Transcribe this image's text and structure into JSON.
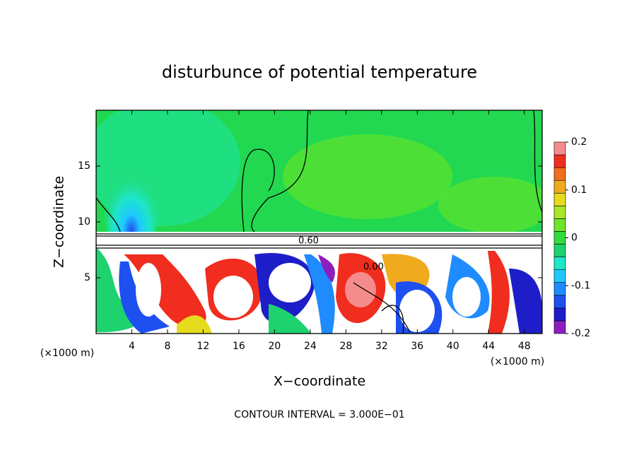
{
  "chart_data": {
    "type": "contour",
    "title": "disturbunce of potential temperature",
    "x_label": "X−coordinate",
    "y_label": "Z−coordinate",
    "x_unit_label": "(×1000 m)",
    "footer": "CONTOUR INTERVAL = 3.000E−01",
    "contour_labels": [
      "0.60",
      "0.00"
    ],
    "xlim": [
      0,
      50
    ],
    "xticks": [
      4,
      8,
      12,
      16,
      20,
      24,
      28,
      32,
      36,
      40,
      44,
      48
    ],
    "ylim": [
      0,
      20
    ],
    "yticks": [
      5,
      10,
      15
    ],
    "colorbar_lim": [
      -0.2,
      0.2
    ],
    "colorbar_ticks": [
      -0.2,
      -0.1,
      0,
      0.1,
      0.2
    ],
    "colorbar_colors": [
      "#8c1ebe",
      "#1e1ec8",
      "#1e50f0",
      "#1e8cff",
      "#1ec8ff",
      "#1ee6c8",
      "#1ed26e",
      "#32dc3c",
      "#6ee628",
      "#aae628",
      "#e6dc1e",
      "#f0aa1e",
      "#f06e1e",
      "#f02d1e",
      "#f58c8c"
    ]
  }
}
